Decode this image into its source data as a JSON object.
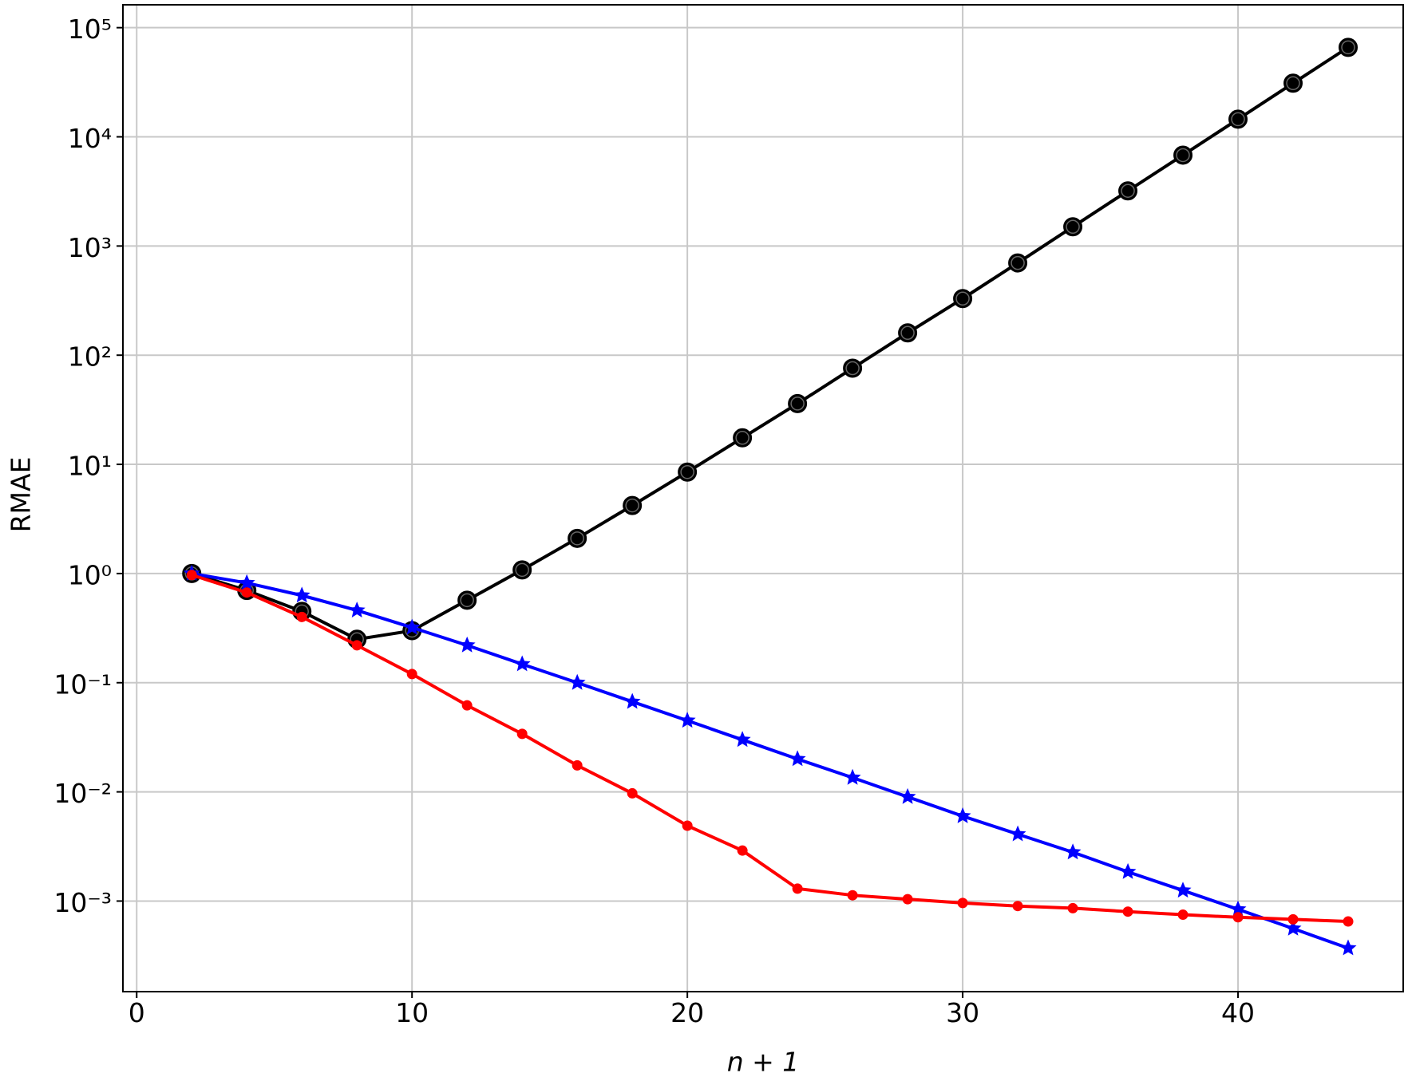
{
  "chart_data": {
    "type": "line",
    "xlabel": "n + 1",
    "ylabel": "RMAE",
    "x": [
      2,
      4,
      6,
      8,
      10,
      12,
      14,
      16,
      18,
      20,
      22,
      24,
      26,
      28,
      30,
      32,
      34,
      36,
      38,
      40,
      42,
      44
    ],
    "series": [
      {
        "color": "#000000",
        "marker": "ring",
        "values": [
          1.0,
          0.7,
          0.45,
          0.25,
          0.3,
          0.57,
          1.08,
          2.1,
          4.2,
          8.5,
          17.5,
          36,
          76,
          160,
          330,
          700,
          1500,
          3200,
          6800,
          14500,
          31000,
          66000
        ]
      },
      {
        "color": "#0000ff",
        "marker": "star",
        "values": [
          1.0,
          0.82,
          0.63,
          0.46,
          0.32,
          0.22,
          0.148,
          0.1,
          0.067,
          0.045,
          0.03,
          0.02,
          0.0135,
          0.009,
          0.006,
          0.0041,
          0.0028,
          0.00185,
          0.00125,
          0.00084,
          0.00056,
          0.00037
        ]
      },
      {
        "color": "#ff0000",
        "marker": "dot",
        "values": [
          0.97,
          0.67,
          0.4,
          0.22,
          0.12,
          0.062,
          0.034,
          0.0175,
          0.0097,
          0.0049,
          0.0029,
          0.0013,
          0.00113,
          0.00104,
          0.00096,
          0.0009,
          0.00086,
          0.0008,
          0.00075,
          0.00071,
          0.00068,
          0.00065
        ]
      }
    ],
    "xlim": [
      -0.5,
      46
    ],
    "xticks": [
      0,
      10,
      20,
      30,
      40
    ],
    "ylim": [
      0.000148,
      162000
    ],
    "ylog": true,
    "yticks": [
      {
        "value": 0.001,
        "label": "10⁻³"
      },
      {
        "value": 0.01,
        "label": "10⁻²"
      },
      {
        "value": 0.1,
        "label": "10⁻¹"
      },
      {
        "value": 1,
        "label": "10⁰"
      },
      {
        "value": 10,
        "label": "10¹"
      },
      {
        "value": 100,
        "label": "10²"
      },
      {
        "value": 1000,
        "label": "10³"
      },
      {
        "value": 10000,
        "label": "10⁴"
      },
      {
        "value": 100000,
        "label": "10⁵"
      }
    ],
    "grid": true
  }
}
